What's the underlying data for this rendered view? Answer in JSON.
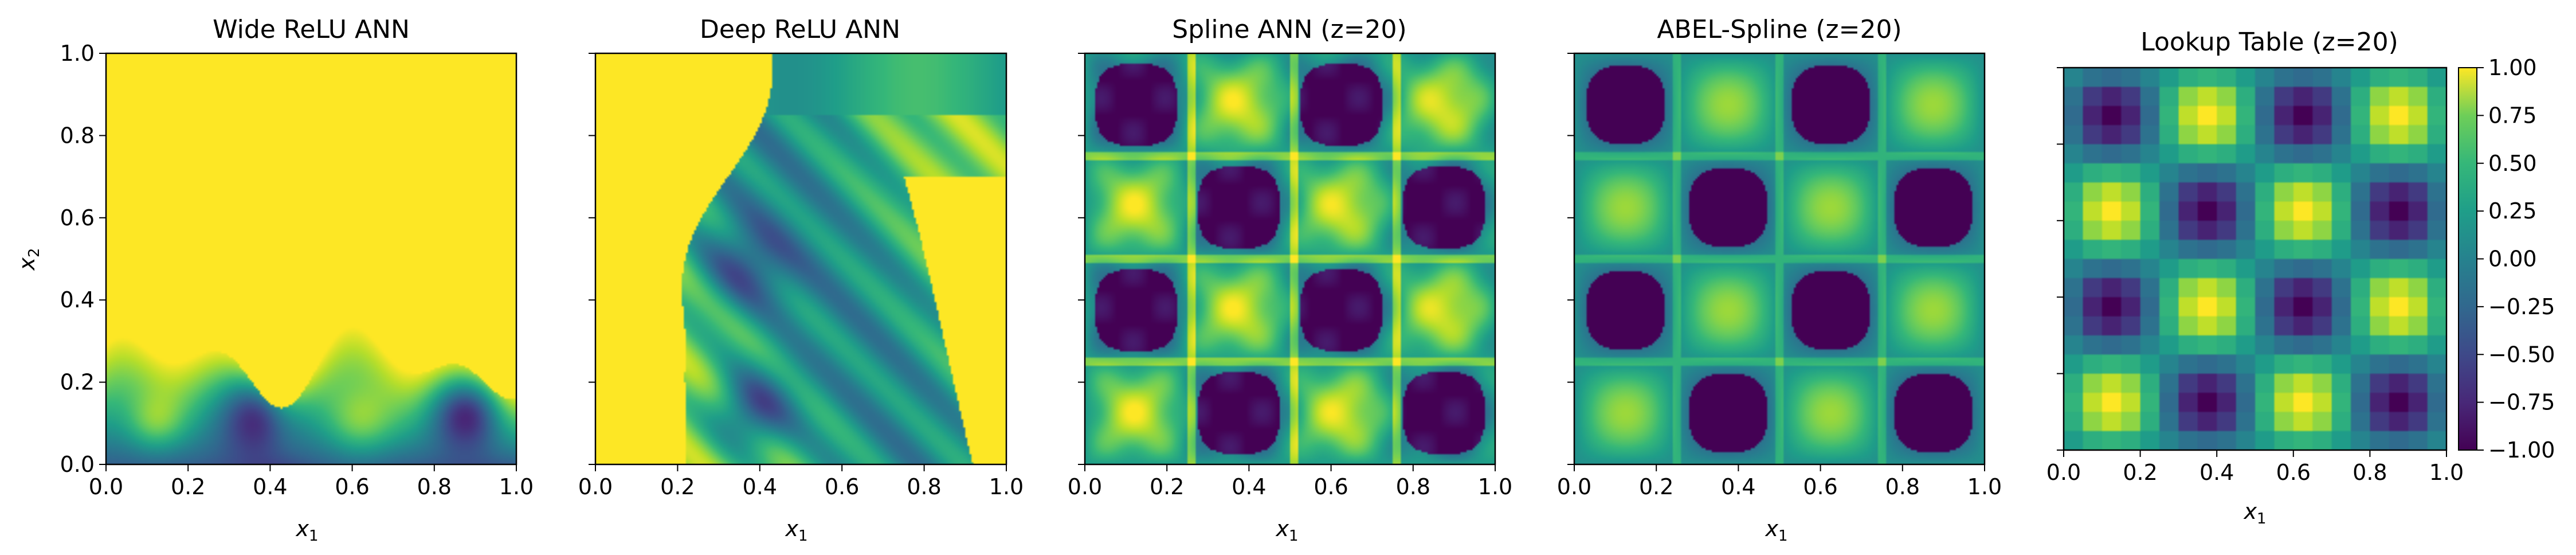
{
  "chart_data": [
    {
      "type": "heatmap",
      "title": "Wide ReLU ANN",
      "xlabel": "x",
      "xlabel_sub": "1",
      "ylabel": "x",
      "ylabel_sub": "2",
      "xlim": [
        0.0,
        1.0
      ],
      "ylim": [
        0.0,
        1.0
      ],
      "xticks": [
        "0.0",
        "0.2",
        "0.4",
        "0.6",
        "0.8",
        "1.0"
      ],
      "yticks": [
        "0.0",
        "0.2",
        "0.4",
        "0.6",
        "0.8",
        "1.0"
      ],
      "colormap": "viridis",
      "value_range": [
        -1.0,
        1.0
      ],
      "description_values": {
        "saturated_value": 1.0,
        "minima": [
          {
            "x": 0.38,
            "y": 0.13,
            "value": -0.9
          },
          {
            "x": 0.88,
            "y": 0.13,
            "value": -0.8
          }
        ]
      }
    },
    {
      "type": "heatmap",
      "title": "Deep ReLU ANN",
      "xlabel": "x",
      "xlabel_sub": "1",
      "xlim": [
        0.0,
        1.0
      ],
      "ylim": [
        0.0,
        1.0
      ],
      "xticks": [
        "0.0",
        "0.2",
        "0.4",
        "0.6",
        "0.8",
        "1.0"
      ],
      "colormap": "viridis",
      "value_range": [
        -1.0,
        1.0
      ],
      "description_values": {
        "saturated_value": 1.0,
        "minima": [
          {
            "x": 0.38,
            "y": 0.13,
            "value": -0.95
          },
          {
            "x": 0.36,
            "y": 0.48,
            "value": -0.6
          }
        ]
      }
    },
    {
      "type": "heatmap",
      "title": "Spline ANN (z=20)",
      "xlabel": "x",
      "xlabel_sub": "1",
      "xlim": [
        0.0,
        1.0
      ],
      "ylim": [
        0.0,
        1.0
      ],
      "xticks": [
        "0.0",
        "0.2",
        "0.4",
        "0.6",
        "0.8",
        "1.0"
      ],
      "colormap": "viridis",
      "value_range": [
        -1.0,
        1.0
      ],
      "grid_lines_x": [
        0.26,
        0.51,
        0.76
      ],
      "grid_lines_y": [
        0.26,
        0.51,
        0.75
      ]
    },
    {
      "type": "heatmap",
      "title": "ABEL-Spline (z=20)",
      "xlabel": "x",
      "xlabel_sub": "1",
      "xlim": [
        0.0,
        1.0
      ],
      "ylim": [
        0.0,
        1.0
      ],
      "xticks": [
        "0.0",
        "0.2",
        "0.4",
        "0.6",
        "0.8",
        "1.0"
      ],
      "colormap": "viridis",
      "value_range": [
        -1.0,
        1.0
      ],
      "grid_lines_x": [
        0.25,
        0.5,
        0.75
      ],
      "grid_lines_y": [
        0.25,
        0.5,
        0.75
      ]
    },
    {
      "type": "heatmap",
      "title": "Lookup Table (z=20)",
      "xlabel": "x",
      "xlabel_sub": "1",
      "xlim": [
        0.0,
        1.0
      ],
      "ylim": [
        0.0,
        1.0
      ],
      "xticks": [
        "0.0",
        "0.2",
        "0.4",
        "0.6",
        "0.8",
        "1.0"
      ],
      "colormap": "viridis",
      "value_range": [
        -1.0,
        1.0
      ],
      "grid_resolution": 20,
      "colorbar_ticks": [
        "1.00",
        "0.75",
        "0.50",
        "0.25",
        "0.00",
        "−0.25",
        "−0.50",
        "−0.75",
        "−1.00"
      ]
    }
  ]
}
